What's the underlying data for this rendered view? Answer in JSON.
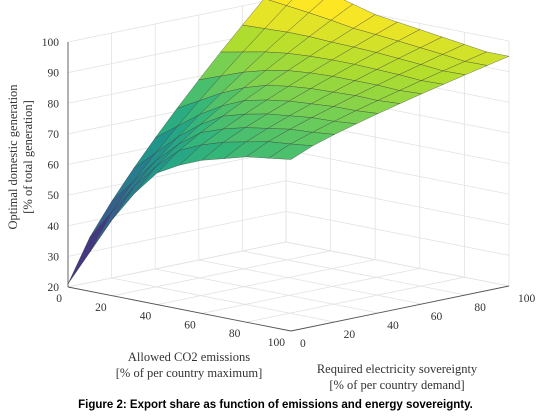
{
  "caption": "Figure 2: Export share as function of emissions and energy sovereignty.",
  "chart_data": {
    "type": "surface",
    "title": "",
    "zlabel": [
      "Optimal domestic generation",
      "[% of total generation]"
    ],
    "xlabel": [
      "Allowed CO2 emissions",
      "[% of per country maximum]"
    ],
    "ylabel": [
      "Required electricity sovereignty",
      "[% of per country demand]"
    ],
    "x_ticks": [
      "0",
      "20",
      "40",
      "60",
      "80",
      "100"
    ],
    "y_ticks": [
      "0",
      "20",
      "40",
      "60",
      "80",
      "100"
    ],
    "z_ticks": [
      "20",
      "30",
      "40",
      "50",
      "60",
      "70",
      "80",
      "90",
      "100"
    ],
    "xlim": [
      0,
      100
    ],
    "ylim": [
      0,
      100
    ],
    "zlim": [
      20,
      100
    ],
    "grid": true,
    "colormap": "viridis",
    "x": [
      0,
      10,
      20,
      30,
      40,
      50,
      60,
      70,
      80,
      90,
      100
    ],
    "y": [
      0,
      10,
      20,
      30,
      40,
      50,
      60,
      70,
      80,
      90,
      100
    ],
    "z_at_zero_sovereignty": [
      21,
      33,
      45,
      55,
      63,
      67,
      70,
      72,
      74,
      75,
      76
    ],
    "z_at_full_sovereignty": [
      108,
      106,
      104,
      102,
      100,
      99,
      98,
      97,
      96,
      95,
      95
    ]
  }
}
